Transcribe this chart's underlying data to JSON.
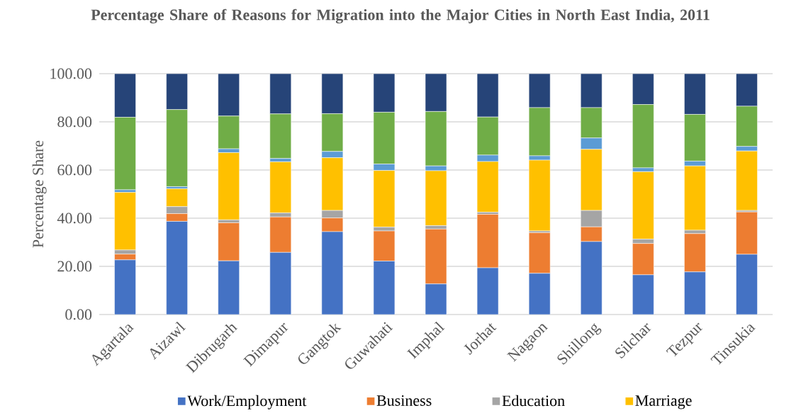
{
  "chart_data": {
    "type": "bar",
    "stacked": true,
    "title": "Percentage Share of Reasons for Migration into the Major Cities in North East India, 2011",
    "ylabel": "Percentage Share",
    "categories": [
      "Agartala",
      "Aizawl",
      "Dibrugarh",
      "Dimapur",
      "Gangtok",
      "Guwahati",
      "Imphal",
      "Jorhat",
      "Nagaon",
      "Shillong",
      "Silchar",
      "Tezpur",
      "Tinsukia"
    ],
    "series": [
      {
        "name": "Work/Employment",
        "color": "#4472c4",
        "values": [
          22.7,
          38.7,
          22.3,
          25.8,
          34.4,
          22.2,
          12.7,
          19.4,
          17.1,
          30.3,
          16.5,
          17.7,
          25.0
        ]
      },
      {
        "name": "Business",
        "color": "#ed7d31",
        "values": [
          2.4,
          3.2,
          15.8,
          14.7,
          5.7,
          12.5,
          22.8,
          22.2,
          16.9,
          6.1,
          13.0,
          15.9,
          17.6
        ]
      },
      {
        "name": "Education",
        "color": "#a5a5a5",
        "values": [
          1.7,
          2.9,
          1.2,
          1.7,
          3.1,
          1.6,
          1.4,
          0.9,
          0.7,
          6.8,
          1.8,
          1.4,
          0.6
        ]
      },
      {
        "name": "Marriage",
        "color": "#ffc000",
        "values": [
          23.9,
          7.4,
          27.9,
          21.2,
          21.9,
          23.5,
          22.8,
          21.0,
          29.4,
          25.4,
          28.0,
          26.7,
          24.7
        ]
      },
      {
        "color": "#5b9bd5",
        "values": [
          1.1,
          0.9,
          1.6,
          1.4,
          2.6,
          2.7,
          2.0,
          2.7,
          1.8,
          4.7,
          1.6,
          2.0,
          1.9
        ]
      },
      {
        "color": "#70ad47",
        "values": [
          30.1,
          32.0,
          13.6,
          18.5,
          15.7,
          21.5,
          22.6,
          15.8,
          20.0,
          12.6,
          26.3,
          19.4,
          16.7
        ]
      },
      {
        "color": "#264478",
        "values": [
          18.1,
          14.9,
          17.6,
          16.7,
          16.6,
          16.0,
          15.7,
          18.0,
          14.1,
          14.1,
          12.8,
          16.9,
          13.5
        ]
      }
    ],
    "ylim": [
      0,
      100
    ],
    "yticks": [
      {
        "value": 0,
        "label": "0.00"
      },
      {
        "value": 20,
        "label": "20.00"
      },
      {
        "value": 40,
        "label": "40.00"
      },
      {
        "value": 60,
        "label": "60.00"
      },
      {
        "value": 80,
        "label": "80.00"
      },
      {
        "value": 100,
        "label": "100.00"
      }
    ],
    "grid": "y",
    "legend": "bottom"
  }
}
